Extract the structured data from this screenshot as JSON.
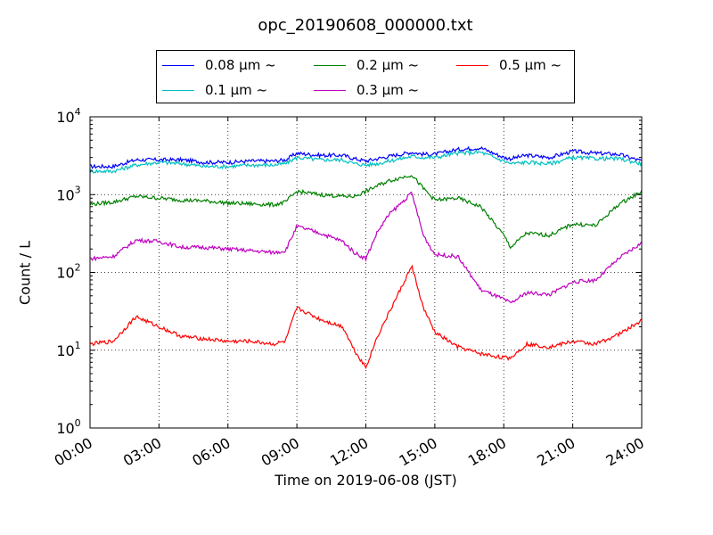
{
  "chart_data": {
    "type": "line",
    "title": "opc_20190608_000000.txt",
    "xlabel": "Time on 2019-06-08 (JST)",
    "ylabel": "Count / L",
    "yscale": "log",
    "ylim": [
      1,
      10000
    ],
    "xlim": [
      0,
      24
    ],
    "grid": true,
    "legend_position": "top-center",
    "x_tick_labels": [
      "00:00",
      "03:00",
      "06:00",
      "09:00",
      "12:00",
      "15:00",
      "18:00",
      "21:00",
      "24:00"
    ],
    "y_tick_labels": [
      {
        "base": "10",
        "exp": "0"
      },
      {
        "base": "10",
        "exp": "1"
      },
      {
        "base": "10",
        "exp": "2"
      },
      {
        "base": "10",
        "exp": "3"
      },
      {
        "base": "10",
        "exp": "4"
      }
    ],
    "x": [
      0,
      1,
      2,
      3,
      4,
      5,
      6,
      7,
      8,
      8.5,
      9,
      10,
      11,
      11.5,
      12,
      12.5,
      13,
      14,
      14.5,
      15,
      16,
      17,
      18,
      18.3,
      19,
      20,
      21,
      22,
      23,
      24
    ],
    "series": [
      {
        "name": "0.08 μm ~",
        "color": "#0000ff",
        "values": [
          2300,
          2300,
          2800,
          2800,
          2800,
          2600,
          2600,
          2700,
          2700,
          2800,
          3400,
          3200,
          3200,
          2900,
          2700,
          2900,
          3100,
          3500,
          3300,
          3300,
          3800,
          4000,
          3000,
          2900,
          3200,
          3000,
          3600,
          3400,
          3300,
          2700
        ]
      },
      {
        "name": "0.1 μm ~",
        "color": "#00bfbf",
        "values": [
          2000,
          2000,
          2400,
          2600,
          2500,
          2300,
          2300,
          2400,
          2400,
          2500,
          3000,
          2800,
          2800,
          2500,
          2400,
          2500,
          2700,
          3100,
          3000,
          3000,
          3400,
          3500,
          2700,
          2500,
          2600,
          2500,
          3000,
          2900,
          2900,
          2500
        ]
      },
      {
        "name": "0.2 μm ~",
        "color": "#008000",
        "values": [
          750,
          800,
          950,
          900,
          850,
          830,
          780,
          760,
          740,
          800,
          1100,
          1000,
          950,
          950,
          1100,
          1300,
          1500,
          1800,
          1200,
          850,
          900,
          700,
          300,
          210,
          320,
          300,
          420,
          400,
          750,
          1100
        ]
      },
      {
        "name": "0.3 μm ~",
        "color": "#bf00bf",
        "values": [
          150,
          160,
          260,
          250,
          210,
          210,
          200,
          190,
          180,
          190,
          390,
          320,
          250,
          180,
          150,
          330,
          550,
          1050,
          300,
          170,
          160,
          60,
          45,
          40,
          55,
          52,
          75,
          80,
          150,
          240
        ]
      },
      {
        "name": "0.5 μm ~",
        "color": "#ff0000",
        "values": [
          12,
          13,
          27,
          20,
          15,
          14,
          13,
          13,
          12,
          13,
          35,
          25,
          20,
          10,
          6,
          15,
          30,
          120,
          35,
          17,
          11,
          9,
          8,
          8,
          12,
          11,
          13,
          12,
          16,
          24
        ]
      }
    ]
  }
}
